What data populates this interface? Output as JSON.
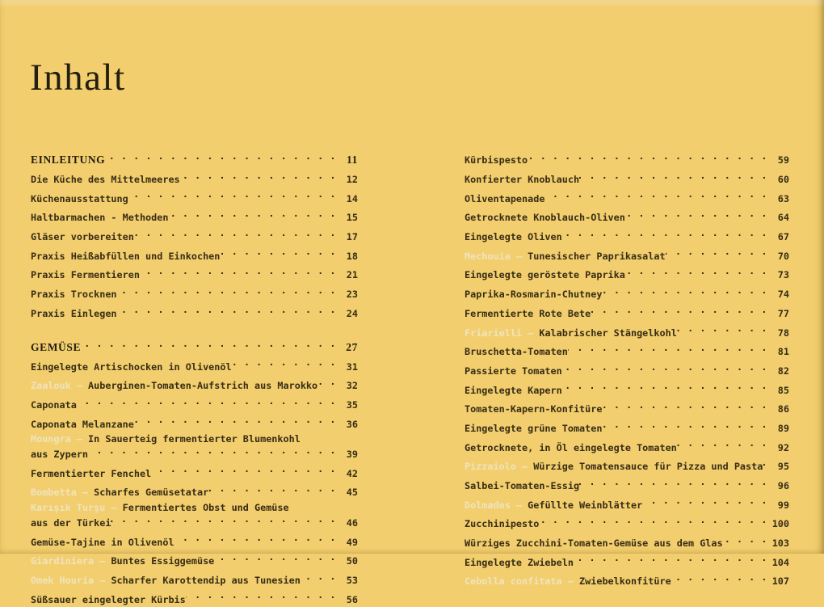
{
  "title": "Inhalt",
  "colors": {
    "background": "#F2CE6E",
    "text": "#372C15",
    "header_text": "#241E10",
    "foreign_name_text": "#F0E4BE"
  },
  "columns": [
    {
      "sections": [
        {
          "header": {
            "label": "EINLEITUNG",
            "page": "11"
          },
          "entries": [
            {
              "title": "Die Küche des Mittelmeeres",
              "page": "12"
            },
            {
              "title": "Küchenausstattung",
              "page": "14"
            },
            {
              "title": "Haltbarmachen - Methoden",
              "page": "15"
            },
            {
              "title": "Gläser vorbereiten",
              "page": "17"
            },
            {
              "title": "Praxis Heißabfüllen und Einkochen",
              "page": "18"
            },
            {
              "title": "Praxis Fermentieren",
              "page": "21"
            },
            {
              "title": "Praxis Trocknen",
              "page": "23"
            },
            {
              "title": "Praxis Einlegen",
              "page": "24"
            }
          ]
        },
        {
          "header": {
            "label": "GEMÜSE",
            "page": "27"
          },
          "entries": [
            {
              "title": "Eingelegte Artischocken in Olivenöl",
              "page": "31"
            },
            {
              "prefix": "Zaalouk – ",
              "title": "Auberginen-Tomaten-Aufstrich aus Marokko",
              "page": "32"
            },
            {
              "title": "Caponata",
              "page": "35"
            },
            {
              "title": "Caponata Melanzane",
              "page": "36"
            },
            {
              "prefix": "Moungra – ",
              "title": "In Sauerteig fermentierter Blumenkohl",
              "title2": "aus Zypern",
              "page": "39"
            },
            {
              "title": "Fermentierter Fenchel",
              "page": "42"
            },
            {
              "prefix": "Bombetta – ",
              "title": "Scharfes Gemüsetatar",
              "page": "45"
            },
            {
              "prefix": "Karışık Turşu – ",
              "title": "Fermentiertes Obst und Gemüse",
              "title2": "aus der Türkei",
              "page": "46"
            },
            {
              "title": "Gemüse-Tajine in Olivenöl",
              "page": "49"
            },
            {
              "prefix": "Giardiniera – ",
              "title": "Buntes Essiggemüse",
              "page": "50"
            },
            {
              "prefix": "Omek Houria – ",
              "title": "Scharfer Karottendip aus Tunesien",
              "page": "53"
            },
            {
              "title": "Süßsauer eingelegter Kürbis",
              "page": "56"
            }
          ]
        }
      ]
    },
    {
      "sections": [
        {
          "header": null,
          "entries": [
            {
              "title": "Kürbispesto",
              "page": "59"
            },
            {
              "title": "Konfierter Knoblauch",
              "page": "60"
            },
            {
              "title": "Oliventapenade",
              "page": "63"
            },
            {
              "title": "Getrocknete Knoblauch-Oliven",
              "page": "64"
            },
            {
              "title": "Eingelegte Oliven",
              "page": "67"
            },
            {
              "prefix": "Mechouia – ",
              "title": "Tunesischer Paprikasalat",
              "page": "70"
            },
            {
              "title": "Eingelegte geröstete Paprika",
              "page": "73"
            },
            {
              "title": "Paprika-Rosmarin-Chutney",
              "page": "74"
            },
            {
              "title": "Fermentierte Rote Bete",
              "page": "77"
            },
            {
              "prefix": "Friarielli – ",
              "title": "Kalabrischer Stängelkohl",
              "page": "78"
            },
            {
              "title": "Bruschetta-Tomaten",
              "page": "81"
            },
            {
              "title": "Passierte Tomaten",
              "page": "82"
            },
            {
              "title": "Eingelegte Kapern",
              "page": "85"
            },
            {
              "title": "Tomaten-Kapern-Konfitüre",
              "page": "86"
            },
            {
              "title": "Eingelegte grüne Tomaten",
              "page": "89"
            },
            {
              "title": "Getrocknete, in Öl eingelegte Tomaten",
              "page": "92"
            },
            {
              "prefix": "Pizzaiolo – ",
              "title": "Würzige Tomatensauce für Pizza und Pasta",
              "page": "95"
            },
            {
              "title": "Salbei-Tomaten-Essig",
              "page": "96"
            },
            {
              "prefix": "Dolmades – ",
              "title": "Gefüllte Weinblätter",
              "page": "99"
            },
            {
              "title": "Zucchinipesto",
              "page": "100"
            },
            {
              "title": "Würziges Zucchini-Tomaten-Gemüse aus dem Glas",
              "page": "103"
            },
            {
              "title": "Eingelegte Zwiebeln",
              "page": "104"
            },
            {
              "prefix": "Cebolla confitata – ",
              "title": "Zwiebelkonfitüre",
              "page": "107"
            }
          ]
        }
      ]
    }
  ]
}
